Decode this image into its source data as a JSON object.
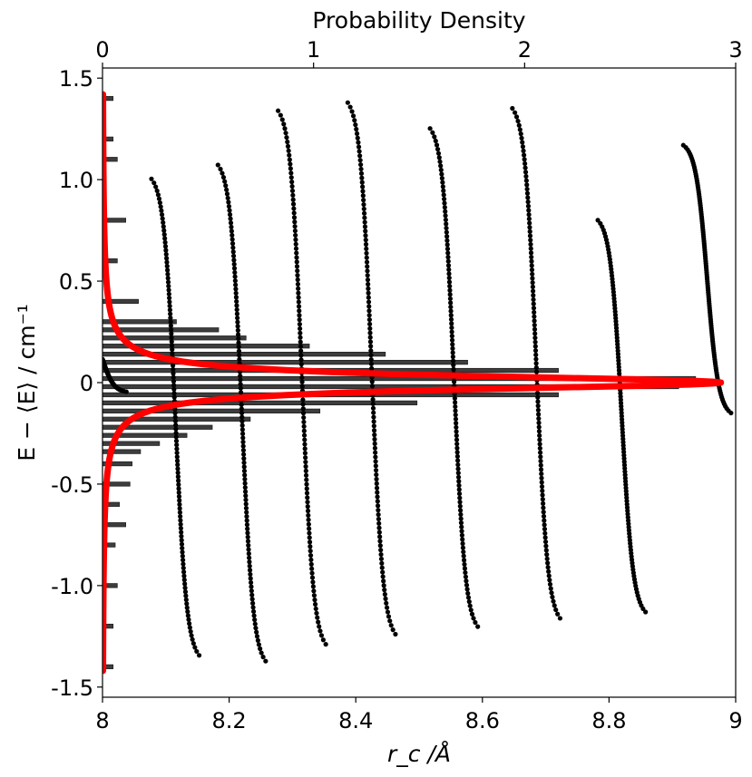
{
  "chart_data": {
    "type": "scatter",
    "title": "",
    "xlabel_top": "Probability Density",
    "xlabel_bottom": "r_c /Å",
    "ylabel": "E − ⟨E⟩ / cm⁻¹",
    "xlim_bottom": [
      8,
      9
    ],
    "xlim_top": [
      0,
      3
    ],
    "ylim": [
      -1.55,
      1.55
    ],
    "x_ticks": [
      "8",
      "8.2",
      "8.4",
      "8.6",
      "8.8",
      "9"
    ],
    "x_tick_values": [
      8,
      8.2,
      8.4,
      8.6,
      8.8,
      9
    ],
    "top_ticks": [
      "0",
      "1",
      "2",
      "3"
    ],
    "top_tick_values": [
      0,
      1,
      2,
      3
    ],
    "y_ticks": [
      "1.5",
      "1.0",
      "0.5",
      "0",
      "-0.5",
      "-1.0",
      "-1.5"
    ],
    "y_tick_values": [
      1.5,
      1.0,
      0.5,
      0,
      -0.5,
      -1.0,
      -1.5
    ],
    "scatter_series": {
      "color": "#000000",
      "curves": [
        {
          "x0": 8.0,
          "xmin": 8.0,
          "ymax": 0.28,
          "ymin": -0.05
        },
        {
          "x0": 8.115,
          "ymax": 1.04,
          "ymin": -1.38
        },
        {
          "x0": 8.22,
          "ymax": 1.11,
          "ymin": -1.41
        },
        {
          "x0": 8.315,
          "ymax": 1.38,
          "ymin": -1.33
        },
        {
          "x0": 8.425,
          "ymax": 1.42,
          "ymin": -1.28
        },
        {
          "x0": 8.555,
          "ymax": 1.29,
          "ymin": -1.24
        },
        {
          "x0": 8.685,
          "ymax": 1.39,
          "ymin": -1.2
        },
        {
          "x0": 8.82,
          "ymax": 0.83,
          "ymin": -1.16
        },
        {
          "x0": 8.955,
          "xmax": 9.0,
          "ymax": 1.19,
          "ymin": -0.17
        }
      ]
    },
    "histogram": {
      "color": "#3d3d3d",
      "bin_width": 0.02,
      "bins": [
        {
          "e": 1.4,
          "d": 0.05
        },
        {
          "e": 1.2,
          "d": 0.05
        },
        {
          "e": 1.1,
          "d": 0.07
        },
        {
          "e": 0.8,
          "d": 0.11
        },
        {
          "e": 0.6,
          "d": 0.07
        },
        {
          "e": 0.4,
          "d": 0.17
        },
        {
          "e": 0.3,
          "d": 0.35
        },
        {
          "e": 0.26,
          "d": 0.55
        },
        {
          "e": 0.22,
          "d": 0.68
        },
        {
          "e": 0.18,
          "d": 0.98
        },
        {
          "e": 0.14,
          "d": 1.34
        },
        {
          "e": 0.1,
          "d": 1.73
        },
        {
          "e": 0.06,
          "d": 2.16
        },
        {
          "e": 0.02,
          "d": 2.81
        },
        {
          "e": -0.02,
          "d": 2.73
        },
        {
          "e": -0.06,
          "d": 2.16
        },
        {
          "e": -0.1,
          "d": 1.49
        },
        {
          "e": -0.14,
          "d": 1.03
        },
        {
          "e": -0.18,
          "d": 0.7
        },
        {
          "e": -0.22,
          "d": 0.52
        },
        {
          "e": -0.26,
          "d": 0.4
        },
        {
          "e": -0.3,
          "d": 0.27
        },
        {
          "e": -0.34,
          "d": 0.18
        },
        {
          "e": -0.4,
          "d": 0.14
        },
        {
          "e": -0.5,
          "d": 0.13
        },
        {
          "e": -0.6,
          "d": 0.08
        },
        {
          "e": -0.7,
          "d": 0.11
        },
        {
          "e": -0.8,
          "d": 0.06
        },
        {
          "e": -1.0,
          "d": 0.07
        },
        {
          "e": -1.2,
          "d": 0.05
        },
        {
          "e": -1.4,
          "d": 0.05
        }
      ]
    },
    "fit_curve": {
      "color": "#ff0000",
      "peak_density": 2.93,
      "gamma": 0.04
    }
  }
}
